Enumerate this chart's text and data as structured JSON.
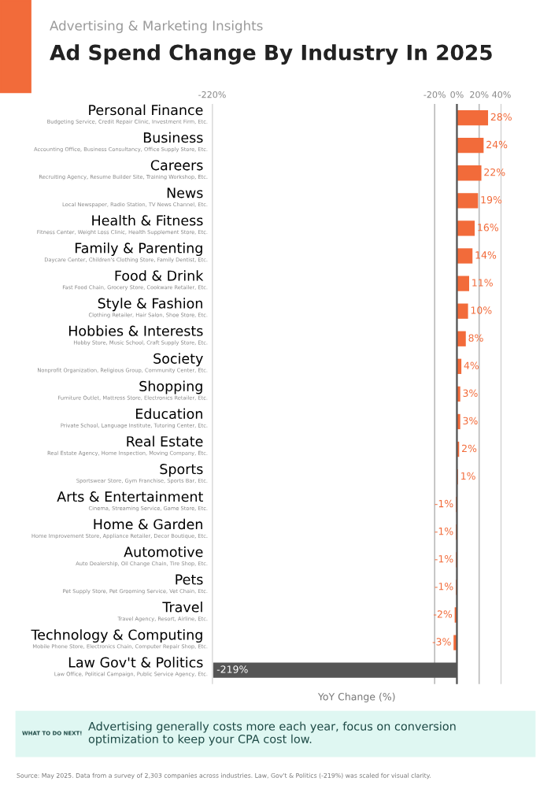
{
  "chart_data": {
    "type": "bar",
    "orientation": "horizontal",
    "title": "Ad Spend Change By Industry In 2025",
    "subtitle": "Advertising & Marketing Insights",
    "xlabel": "YoY Change (%)",
    "categories": [
      "Personal Finance",
      "Business",
      "Careers",
      "News",
      "Health & Fitness",
      "Family & Parenting",
      "Food & Drink",
      "Style & Fashion",
      "Hobbies & Interests",
      "Society",
      "Shopping",
      "Education",
      "Real Estate",
      "Sports",
      "Arts & Entertainment",
      "Home & Garden",
      "Automotive",
      "Pets",
      "Travel",
      "Technology & Computing",
      "Law Gov't & Politics"
    ],
    "values": [
      28,
      24,
      22,
      19,
      16,
      14,
      11,
      10,
      8,
      4,
      3,
      3,
      2,
      1,
      -1,
      -1,
      -1,
      -1,
      -2,
      -3,
      -219
    ],
    "colors": [
      "#f26b3a",
      "#f26b3a",
      "#f26b3a",
      "#f26b3a",
      "#f26b3a",
      "#f26b3a",
      "#f26b3a",
      "#f26b3a",
      "#f26b3a",
      "#f26b3a",
      "#f26b3a",
      "#f26b3a",
      "#f26b3a",
      "#f26b3a",
      "#f26b3a",
      "#f26b3a",
      "#f26b3a",
      "#f26b3a",
      "#f26b3a",
      "#f26b3a",
      "#555555"
    ],
    "value_labels": [
      "28%",
      "24%",
      "22%",
      "19%",
      "16%",
      "14%",
      "11%",
      "10%",
      "8%",
      "4%",
      "3%",
      "3%",
      "2%",
      "1%",
      "-1%",
      "-1%",
      "-1%",
      "-1%",
      "-2%",
      "-3%",
      "-219%"
    ],
    "xlim": [
      -220,
      40
    ],
    "xticks": [
      {
        "value": -220,
        "label": "-220%"
      },
      {
        "value": -20,
        "label": "-20%"
      },
      {
        "value": 0,
        "label": "0%"
      },
      {
        "value": 20,
        "label": "20%"
      },
      {
        "value": 40,
        "label": "40%"
      }
    ],
    "grid": "x",
    "annotations": [
      "Budgeting Service, Credit Repair Clinic, Investment Firm, Etc.",
      "Accounting Office, Business Consultancy, Office Supply Store, Etc.",
      "Recruiting Agency, Resume Builder Site, Training Workshop, Etc.",
      "Local Newspaper, Radio Station, TV News Channel, Etc.",
      "Fitness Center, Weight Loss Clinic, Health Supplement Store, Etc.",
      "Daycare Center, Children's Clothing Store, Family Dentist, Etc.",
      "Fast Food Chain, Grocery Store, Cookware Retailer, Etc.",
      "Clothing Retailer, Hair Salon, Shoe Store, Etc.",
      "Hobby Store, Music School, Craft Supply Store, Etc.",
      "Nonprofit Organization, Religious Group, Community Center, Etc.",
      "Furniture Outlet, Mattress Store, Electronics Retailer, Etc.",
      "Private School, Language Institute, Tutoring Center, Etc.",
      "Real Estate Agency, Home Inspection, Moving Company, Etc.",
      "Sportswear Store, Gym Franchise, Sports Bar, Etc.",
      "Cinema, Streaming Service, Game Store, Etc.",
      "Home Improvement Store, Appliance Retailer, Decor Boutique, Etc.",
      "Auto Dealership, Oil Change Chain, Tire Shop, Etc.",
      "Pet Supply Store, Pet Grooming Service, Vet Chain, Etc.",
      "Travel Agency, Resort, Airline, Etc.",
      "Mobile Phone Store, Electronics Chain, Computer Repair Shop, Etc.",
      "Law Office, Political Campaign, Public Service Agency, Etc.",
      "WHAT TO DO NEXT!",
      "Advertising generally costs more each year, focus on conversion optimization to keep your CPA cost low.",
      "Source: May 2025. Data from a survey of 2,303 companies across industries. Law, Gov't & Politics (-219%) was scaled for visual clarity."
    ]
  }
}
